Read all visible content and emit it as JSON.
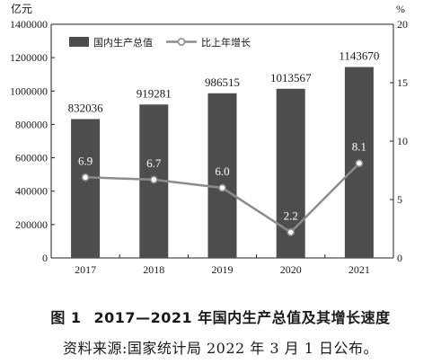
{
  "figure": {
    "number": "图 1",
    "title": "2017—2021 年国内生产总值及其增长速度",
    "source": "资料来源:国家统计局 2022 年 3 月 1 日公布。"
  },
  "chart_data": {
    "type": "bar",
    "categories": [
      "2017",
      "2018",
      "2019",
      "2020",
      "2021"
    ],
    "series": [
      {
        "name": "国内生产总值",
        "type": "bar",
        "axis": "left",
        "values": [
          832036,
          919281,
          986515,
          1013567,
          1143670
        ]
      },
      {
        "name": "比上年增长",
        "type": "line",
        "axis": "right",
        "values": [
          6.9,
          6.7,
          6.0,
          2.2,
          8.1
        ]
      }
    ],
    "ylabel_left": "亿元",
    "ylabel_right": "%",
    "ylim_left": [
      0,
      1400000
    ],
    "ylim_right": [
      0,
      20
    ],
    "yticks_left": [
      "0",
      "200000",
      "400000",
      "600000",
      "800000",
      "1000000",
      "1200000",
      "1400000"
    ],
    "yticks_right": [
      "0",
      "5",
      "10",
      "15",
      "20"
    ],
    "line_labels": [
      "6.9",
      "6.7",
      "6.0",
      "2.2",
      "8.1"
    ],
    "legend_position": "top-left",
    "grid": false,
    "colors": {
      "bar": "#4d4d4d",
      "line": "#8c8c8c",
      "label_on_bar": "#ffffff"
    }
  }
}
